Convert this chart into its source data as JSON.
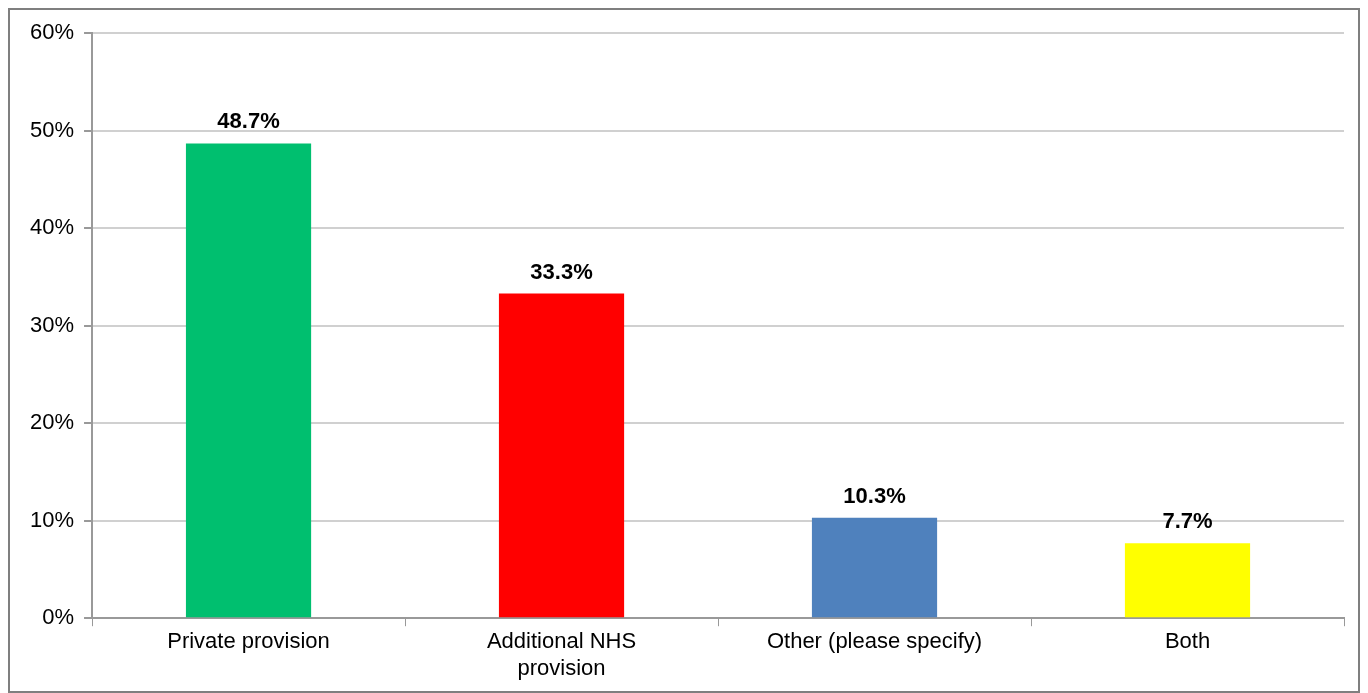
{
  "chart_data": {
    "type": "bar",
    "categories": [
      "Private provision",
      "Additional NHS provision",
      "Other (please specify)",
      "Both"
    ],
    "values": [
      48.7,
      33.3,
      10.3,
      7.7
    ],
    "colors": [
      "#00bf6f",
      "#ff0000",
      "#4f81bd",
      "#ffff00"
    ],
    "value_labels": [
      "48.7%",
      "33.3%",
      "10.3%",
      "7.7%"
    ],
    "ylim": [
      0,
      60
    ],
    "yticks": [
      {
        "value": 0,
        "label": "0%"
      },
      {
        "value": 10,
        "label": "10%"
      },
      {
        "value": 20,
        "label": "20%"
      },
      {
        "value": 30,
        "label": "30%"
      },
      {
        "value": 40,
        "label": "40%"
      },
      {
        "value": 50,
        "label": "50%"
      },
      {
        "value": 60,
        "label": "60%"
      }
    ],
    "grid": "y",
    "legend": false
  }
}
